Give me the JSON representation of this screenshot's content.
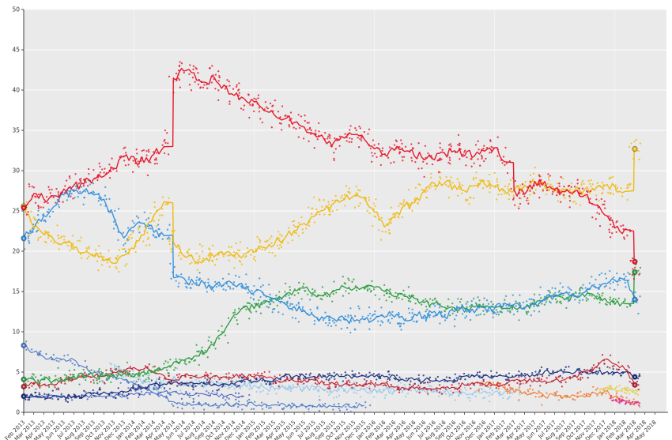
{
  "page": {
    "background": "#ffffff",
    "plot_background": "#eaeaea",
    "grid_color": "#fbfbfb",
    "axis_color": "#444444",
    "tick_label_color": "#333333"
  },
  "chart_data": {
    "type": "scatter+line",
    "title": "",
    "xlabel": "",
    "ylabel": "",
    "ylim": [
      0,
      50
    ],
    "y_ticks": [
      0,
      5,
      10,
      15,
      20,
      25,
      30,
      35,
      40,
      45,
      50
    ],
    "grid": "horizontal white lines every 5 on light-gray panel, faint vertical lines at each January",
    "legend_position": "none",
    "x_tick_labels": [
      "Feb 2013",
      "Mar 2013",
      "Apr 2013",
      "May 2013",
      "Jun 2013",
      "Jul 2013",
      "Aug 2013",
      "Sep 2013",
      "Oct 2013",
      "Nov 2013",
      "Dec 2013",
      "Jan 2014",
      "Feb 2014",
      "Mar 2014",
      "Apr 2014",
      "May 2014",
      "Jun 2014",
      "Jul 2014",
      "Aug 2014",
      "Sep 2014",
      "Oct 2014",
      "Nov 2014",
      "Dec 2014",
      "Jan 2015",
      "Feb 2015",
      "Mar 2015",
      "Apr 2015",
      "May 2015",
      "Jun 2015",
      "Jul 2015",
      "Aug 2015",
      "Sep 2015",
      "Oct 2015",
      "Nov 2015",
      "Dec 2015",
      "Jan 2016",
      "Feb 2016",
      "Mar 2016",
      "Apr 2016",
      "May 2016",
      "Jun 2016",
      "Jul 2016",
      "Aug 2016",
      "Sep 2016",
      "Oct 2016",
      "Nov 2016",
      "Dec 2016",
      "Jan 2017",
      "Feb 2017",
      "Mar 2017",
      "Apr 2017",
      "May 2017",
      "Jun 2017",
      "Jul 2017",
      "Aug 2017",
      "Sep 2017",
      "Oct 2017",
      "Nov 2017",
      "Dec 2017",
      "Jan 2018",
      "Feb 2018",
      "Mar 2018",
      "Apr 2018",
      "May 2018"
    ],
    "series": [
      {
        "name": "royal-blue-minor",
        "color": "#3f5fc0",
        "start": 0,
        "wiggle": 0.25,
        "width": 1.0,
        "dots": 3,
        "spread": 0.6,
        "smarker": false,
        "emarker": false,
        "values": [
          1.8,
          2,
          2,
          2,
          2,
          2,
          2,
          2,
          2,
          2,
          2,
          2.2,
          2.2,
          2.5,
          2.5,
          2.5,
          2.2,
          2.2,
          2.2,
          2.2,
          2,
          2,
          2
        ]
      },
      {
        "name": "medium-blue-declining",
        "color": "#4d79c5",
        "start": 0,
        "wiggle": 0.3,
        "width": 1.1,
        "dots": 4,
        "spread": 0.8,
        "smarker": true,
        "emarker": false,
        "values": [
          8.3,
          7.5,
          7,
          6.5,
          6.5,
          6.5,
          5.5,
          5,
          4.5,
          4.5,
          4,
          3.5,
          3,
          2.5,
          2,
          1.2,
          1,
          1,
          1,
          1,
          1,
          1,
          1,
          1,
          1,
          0.9,
          0.9,
          0.8,
          0.8,
          0.8,
          0.8,
          0.8,
          0.8,
          0.8,
          0.8
        ]
      },
      {
        "name": "pale-blue",
        "color": "#96c7ea",
        "start": 9,
        "wiggle": 0.5,
        "width": 1.0,
        "dots": 6,
        "spread": 1.0,
        "smarker": false,
        "emarker": false,
        "values": [
          5.5,
          5,
          4.5,
          4,
          3.5,
          3.5,
          4.3,
          3.5,
          3.5,
          3.5,
          3.5,
          3.5,
          3.5,
          3.5,
          3.2,
          3,
          3,
          3,
          3,
          3,
          3,
          2.8,
          2.8,
          2.8,
          2.8,
          2.8,
          2.8,
          2.8,
          2.8,
          2.8,
          2.8,
          2.8,
          2.8,
          2.6,
          2.5,
          2.5,
          2.5,
          2.5,
          2.5,
          2.5,
          2.5
        ]
      },
      {
        "name": "orange",
        "color": "#ef7d33",
        "start": 46,
        "wiggle": 0.35,
        "width": 1.1,
        "dots": 6,
        "spread": 0.8,
        "smarker": false,
        "emarker": false,
        "values": [
          3.5,
          3.5,
          3,
          2.5,
          2.5,
          2.5,
          2,
          2,
          2,
          2,
          2,
          2.5,
          2.5,
          2,
          1.5,
          1.3
        ]
      },
      {
        "name": "small-yellow-late",
        "color": "#e2ca43",
        "start": 58,
        "wiggle": 0.2,
        "width": 1.0,
        "dots": 9,
        "spread": 0.45,
        "smarker": false,
        "emarker": false,
        "values": [
          3,
          2.8,
          2.8,
          2.6
        ]
      },
      {
        "name": "magenta-late",
        "color": "#df2a8c",
        "start": 59,
        "wiggle": 0.2,
        "width": 1.0,
        "dots": 9,
        "spread": 0.45,
        "smarker": false,
        "emarker": false,
        "values": [
          1.5,
          1.4,
          1.1
        ]
      },
      {
        "name": "navy",
        "color": "#1c2e7d",
        "start": 0,
        "wiggle": 0.3,
        "width": 1.2,
        "dots": 5,
        "spread": 0.7,
        "smarker": true,
        "emarker": true,
        "values": [
          2,
          2,
          2,
          2,
          2,
          2,
          2,
          2.5,
          2.5,
          2.5,
          2.5,
          3,
          3,
          3.5,
          3.5,
          3.7,
          3.5,
          3.5,
          3.5,
          3.5,
          3.5,
          3.5,
          4,
          4,
          4,
          4,
          4.5,
          4.5,
          4.5,
          4.5,
          4.5,
          4.5,
          4.5,
          4.5,
          4.5,
          4.5,
          4.5,
          4.5,
          4,
          4,
          4,
          4,
          4,
          4,
          4.5,
          4.5,
          4.5,
          4.5,
          4.5,
          4.5,
          4.5,
          4.5,
          5,
          5,
          5,
          5,
          5,
          5,
          5,
          5,
          5,
          4.4
        ]
      },
      {
        "name": "dark-red",
        "color": "#c22335",
        "start": 0,
        "wiggle": 0.3,
        "width": 1.15,
        "dots": 5,
        "spread": 0.7,
        "smarker": true,
        "emarker": true,
        "values": [
          3.2,
          3.5,
          3.5,
          3.5,
          4,
          4,
          4.5,
          4.5,
          4.5,
          5,
          5,
          5.5,
          5.5,
          5,
          4.5,
          4,
          4.5,
          4.5,
          4.5,
          4.5,
          4.5,
          4.5,
          4.5,
          4.5,
          4.5,
          4,
          4,
          4,
          4,
          4,
          3.5,
          3.5,
          3.5,
          3.5,
          3.5,
          3.5,
          3.5,
          3,
          3,
          3,
          3,
          3,
          3,
          3,
          3.5,
          3.5,
          3.5,
          3.5,
          3.5,
          4,
          4,
          4,
          4,
          4,
          4,
          4.5,
          5,
          5.5,
          6.5,
          6,
          5.5,
          3.4
        ]
      },
      {
        "name": "green",
        "color": "#2f9e44",
        "start": 0,
        "wiggle": 0.4,
        "width": 1.35,
        "dots": 7,
        "spread": 1.1,
        "smarker": true,
        "emarker": true,
        "values": [
          4.1,
          4,
          4,
          4,
          4,
          4.5,
          4.5,
          4.5,
          4.5,
          4.5,
          5,
          4.5,
          5,
          5,
          5.5,
          6.2,
          6.5,
          7,
          7.5,
          8.5,
          10,
          12,
          13,
          13,
          13.5,
          14,
          14.5,
          15,
          15.5,
          14.5,
          14.5,
          15,
          15.5,
          15.5,
          15.5,
          15.5,
          15,
          14.5,
          14.5,
          14,
          13.5,
          13.5,
          13,
          13,
          13,
          13,
          13,
          13,
          13,
          13,
          13,
          13.5,
          14,
          14.5,
          14,
          14.5,
          14.5,
          14.5,
          14,
          13.5,
          13.5,
          17.4
        ]
      },
      {
        "name": "azure-blue",
        "color": "#3390dc",
        "start": 0,
        "wiggle": 0.5,
        "width": 1.35,
        "dots": 8,
        "spread": 1.4,
        "smarker": true,
        "emarker": true,
        "values": [
          21.6,
          23,
          24.5,
          25.5,
          27,
          27.5,
          27.5,
          27,
          26.5,
          24,
          21.5,
          23,
          23.5,
          22.5,
          22,
          16.8,
          16.5,
          16,
          16,
          15.5,
          16,
          16,
          15.5,
          15,
          14.5,
          14,
          13.5,
          13,
          12.5,
          12,
          11.5,
          11.5,
          11.5,
          11.5,
          11.5,
          11.5,
          12,
          12,
          11.5,
          12,
          12,
          12.5,
          12,
          12.5,
          12.5,
          12.5,
          13,
          13,
          13.5,
          13.5,
          13,
          13.5,
          14,
          14.5,
          15,
          14.5,
          15,
          15.5,
          16,
          16.5,
          16.5,
          14.0
        ]
      },
      {
        "name": "yellow",
        "color": "#f0bb13",
        "start": 0,
        "wiggle": 0.55,
        "width": 1.4,
        "dots": 9,
        "spread": 1.6,
        "smarker": true,
        "emarker": true,
        "values": [
          25.6,
          23,
          22,
          21.5,
          21,
          20.5,
          20,
          19.5,
          19,
          18.5,
          19.5,
          20.5,
          22,
          24.5,
          26,
          21.2,
          19.5,
          19,
          19,
          19.5,
          19.5,
          19.5,
          19.5,
          20,
          20.5,
          21,
          21.5,
          22.5,
          23.5,
          24.5,
          25,
          26,
          26.5,
          27,
          26.5,
          25,
          23,
          24.5,
          25.5,
          26,
          27.5,
          28.5,
          28.5,
          28,
          27.5,
          28,
          28.5,
          28,
          27.5,
          27.5,
          28,
          28.5,
          28,
          27.5,
          27.5,
          27.5,
          27.5,
          27.5,
          28,
          28,
          27.5,
          32.7
        ]
      },
      {
        "name": "red",
        "color": "#e8192c",
        "start": 0,
        "wiggle": 0.55,
        "width": 1.4,
        "dots": 9,
        "spread": 1.7,
        "smarker": true,
        "emarker": true,
        "values": [
          25.4,
          27,
          26.5,
          27,
          27.5,
          28,
          28.5,
          29,
          29.5,
          30.5,
          31.5,
          31.5,
          31,
          32,
          33,
          41.5,
          42.5,
          42,
          41,
          41.5,
          40.5,
          39.5,
          39,
          38.5,
          37.5,
          37,
          36.5,
          36,
          35.5,
          34.5,
          34,
          33.5,
          34,
          34.5,
          34,
          32.5,
          32,
          32.5,
          32.5,
          32,
          31.5,
          31.5,
          32,
          32.5,
          32,
          32,
          32.5,
          33,
          31,
          27.5,
          27,
          28.5,
          28.5,
          27.5,
          27.5,
          27.5,
          27,
          25.5,
          24.5,
          23,
          22.5,
          18.7
        ]
      }
    ]
  }
}
